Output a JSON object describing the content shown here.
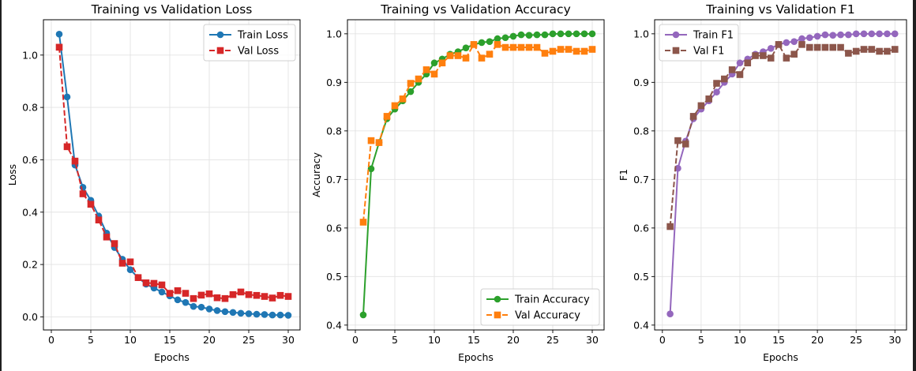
{
  "chart_data": [
    {
      "type": "line",
      "id": "loss",
      "title": "Training vs Validation Loss",
      "xlabel": "Epochs",
      "ylabel": "Loss",
      "xlim": [
        -1,
        31.5
      ],
      "ylim": [
        -0.05,
        1.135
      ],
      "xticks": [
        0,
        5,
        10,
        15,
        20,
        25,
        30
      ],
      "yticks": [
        0.0,
        0.2,
        0.4,
        0.6,
        0.8,
        1.0
      ],
      "ytick_labels": [
        "0.0",
        "0.2",
        "0.4",
        "0.6",
        "0.8",
        "1.0"
      ],
      "grid": true,
      "legend_position": "top-right",
      "x": [
        1,
        2,
        3,
        4,
        5,
        6,
        7,
        8,
        9,
        10,
        11,
        12,
        13,
        14,
        15,
        16,
        17,
        18,
        19,
        20,
        21,
        22,
        23,
        24,
        25,
        26,
        27,
        28,
        29,
        30
      ],
      "series": [
        {
          "name": "Train Loss",
          "color": "#1f77b4",
          "marker": "circle",
          "dash": "solid",
          "values": [
            1.08,
            0.84,
            0.58,
            0.495,
            0.445,
            0.385,
            0.32,
            0.265,
            0.22,
            0.18,
            0.15,
            0.125,
            0.11,
            0.095,
            0.08,
            0.065,
            0.055,
            0.04,
            0.037,
            0.03,
            0.024,
            0.02,
            0.017,
            0.014,
            0.012,
            0.01,
            0.009,
            0.007,
            0.007,
            0.006
          ]
        },
        {
          "name": "Val Loss",
          "color": "#d62728",
          "marker": "square",
          "dash": "dashed",
          "values": [
            1.03,
            0.65,
            0.595,
            0.47,
            0.43,
            0.37,
            0.305,
            0.28,
            0.205,
            0.21,
            0.15,
            0.13,
            0.128,
            0.122,
            0.09,
            0.1,
            0.09,
            0.07,
            0.083,
            0.088,
            0.073,
            0.07,
            0.085,
            0.095,
            0.085,
            0.082,
            0.078,
            0.072,
            0.082,
            0.078
          ]
        }
      ]
    },
    {
      "type": "line",
      "id": "accuracy",
      "title": "Training vs Validation Accuracy",
      "xlabel": "Epochs",
      "ylabel": "Accuracy",
      "xlim": [
        -1,
        31.5
      ],
      "ylim": [
        0.39,
        1.029
      ],
      "xticks": [
        0,
        5,
        10,
        15,
        20,
        25,
        30
      ],
      "yticks": [
        0.4,
        0.5,
        0.6,
        0.7,
        0.8,
        0.9,
        1.0
      ],
      "ytick_labels": [
        "0.4",
        "0.5",
        "0.6",
        "0.7",
        "0.8",
        "0.9",
        "1.0"
      ],
      "grid": true,
      "legend_position": "bottom-right",
      "x": [
        1,
        2,
        3,
        4,
        5,
        6,
        7,
        8,
        9,
        10,
        11,
        12,
        13,
        14,
        15,
        16,
        17,
        18,
        19,
        20,
        21,
        22,
        23,
        24,
        25,
        26,
        27,
        28,
        29,
        30
      ],
      "series": [
        {
          "name": "Train Accuracy",
          "color": "#2ca02c",
          "marker": "circle",
          "dash": "solid",
          "values": [
            0.421,
            0.722,
            0.776,
            0.825,
            0.845,
            0.862,
            0.881,
            0.9,
            0.917,
            0.94,
            0.948,
            0.958,
            0.963,
            0.971,
            0.978,
            0.982,
            0.984,
            0.99,
            0.992,
            0.995,
            0.998,
            0.997,
            0.998,
            0.998,
            1.0,
            1.0,
            1.0,
            1.0,
            1.0,
            1.0
          ]
        },
        {
          "name": "Val Accuracy",
          "color": "#ff7f0e",
          "marker": "square",
          "dash": "dashed",
          "values": [
            0.612,
            0.78,
            0.776,
            0.83,
            0.852,
            0.866,
            0.898,
            0.907,
            0.926,
            0.917,
            0.94,
            0.955,
            0.955,
            0.95,
            0.978,
            0.95,
            0.958,
            0.978,
            0.972,
            0.972,
            0.972,
            0.972,
            0.972,
            0.96,
            0.964,
            0.968,
            0.968,
            0.964,
            0.964,
            0.968
          ]
        }
      ]
    },
    {
      "type": "line",
      "id": "f1",
      "title": "Training vs Validation F1",
      "xlabel": "Epochs",
      "ylabel": "F1",
      "xlim": [
        -1,
        31.5
      ],
      "ylim": [
        0.39,
        1.029
      ],
      "xticks": [
        0,
        5,
        10,
        15,
        20,
        25,
        30
      ],
      "yticks": [
        0.4,
        0.5,
        0.6,
        0.7,
        0.8,
        0.9,
        1.0
      ],
      "ytick_labels": [
        "0.4",
        "0.5",
        "0.6",
        "0.7",
        "0.8",
        "0.9",
        "1.0"
      ],
      "grid": true,
      "legend_position": "top-left",
      "x": [
        1,
        2,
        3,
        4,
        5,
        6,
        7,
        8,
        9,
        10,
        11,
        12,
        13,
        14,
        15,
        16,
        17,
        18,
        19,
        20,
        21,
        22,
        23,
        24,
        25,
        26,
        27,
        28,
        29,
        30
      ],
      "series": [
        {
          "name": "Train F1",
          "color": "#9467bd",
          "marker": "circle",
          "dash": "solid",
          "values": [
            0.423,
            0.723,
            0.779,
            0.825,
            0.845,
            0.862,
            0.88,
            0.9,
            0.917,
            0.94,
            0.948,
            0.958,
            0.963,
            0.97,
            0.978,
            0.982,
            0.984,
            0.99,
            0.992,
            0.995,
            0.998,
            0.997,
            0.998,
            0.998,
            1.0,
            1.0,
            1.0,
            1.0,
            1.0,
            1.0
          ]
        },
        {
          "name": "Val F1",
          "color": "#8c564b",
          "marker": "square",
          "dash": "dashed",
          "values": [
            0.603,
            0.78,
            0.773,
            0.83,
            0.852,
            0.866,
            0.898,
            0.907,
            0.926,
            0.916,
            0.94,
            0.955,
            0.955,
            0.95,
            0.978,
            0.95,
            0.958,
            0.978,
            0.972,
            0.972,
            0.972,
            0.972,
            0.972,
            0.96,
            0.964,
            0.968,
            0.968,
            0.964,
            0.964,
            0.968
          ]
        }
      ]
    }
  ]
}
